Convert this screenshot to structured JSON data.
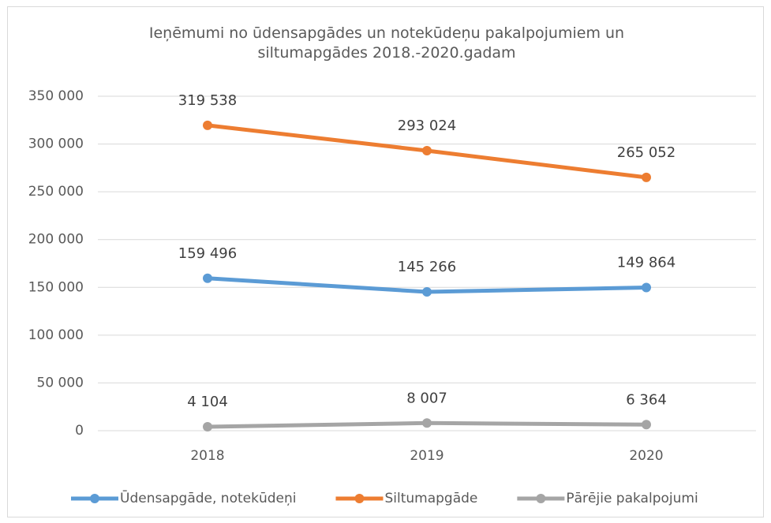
{
  "chart_data": {
    "type": "line",
    "title": "Ieņēmumi no ūdensapgādes un notekūdeņu pakalpojumiem un siltumapgādes 2018.-2020.gadam",
    "categories": [
      "2018",
      "2019",
      "2020"
    ],
    "series": [
      {
        "name": "Ūdensapgāde, notekūdeņi",
        "color": "#5b9bd5",
        "values": [
          159496,
          145266,
          149864
        ],
        "value_labels": [
          "159 496",
          "145 266",
          "149 864"
        ]
      },
      {
        "name": "Siltumapgāde",
        "color": "#ed7d31",
        "values": [
          319538,
          293024,
          265052
        ],
        "value_labels": [
          "319 538",
          "293 024",
          "265 052"
        ]
      },
      {
        "name": "Pārējie pakalpojumi",
        "color": "#a5a5a5",
        "values": [
          4104,
          8007,
          6364
        ],
        "value_labels": [
          "4 104",
          "8 007",
          "6 364"
        ]
      }
    ],
    "ylim": [
      0,
      350000
    ],
    "yticks": [
      0,
      {
        "value": 50000,
        "label": "50 000"
      },
      {
        "value": 100000,
        "label": "100 000"
      },
      {
        "value": 150000,
        "label": "150 000"
      },
      {
        "value": 200000,
        "label": "200 000"
      },
      {
        "value": 250000,
        "label": "250 000"
      },
      {
        "value": 300000,
        "label": "300 000"
      },
      {
        "value": 350000,
        "label": "350 000"
      }
    ],
    "grid": true,
    "legend": "bottom"
  }
}
